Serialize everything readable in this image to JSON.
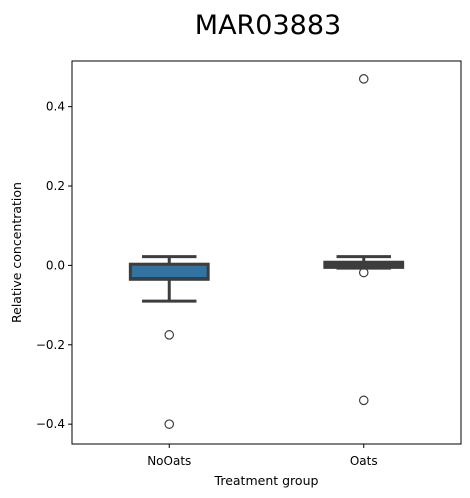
{
  "chart_data": {
    "type": "box",
    "title": "MAR03883",
    "xlabel": "Treatment group",
    "ylabel": "Relative concentration",
    "categories": [
      "NoOats",
      "Oats"
    ],
    "ylim": [
      -0.45,
      0.515
    ],
    "yticks": [
      -0.4,
      -0.2,
      0.0,
      0.2,
      0.4
    ],
    "ytick_labels": [
      "−0.4",
      "−0.2",
      "0.0",
      "0.2",
      "0.4"
    ],
    "grid": false,
    "boxes": [
      {
        "category": "NoOats",
        "whisker_low": -0.09,
        "q1": -0.035,
        "median": -0.033,
        "q3": 0.003,
        "whisker_high": 0.022,
        "outliers": [
          -0.175,
          -0.4
        ],
        "fill": "#3274a1"
      },
      {
        "category": "Oats",
        "whisker_low": -0.007,
        "q1": -0.005,
        "median": 0.002,
        "q3": 0.008,
        "whisker_high": 0.022,
        "outliers": [
          0.47,
          -0.018,
          -0.34
        ],
        "fill": "#e1812c"
      }
    ],
    "colors": {
      "line": "#3d3d3d",
      "outlier_edge": "#3d3d3d"
    }
  }
}
